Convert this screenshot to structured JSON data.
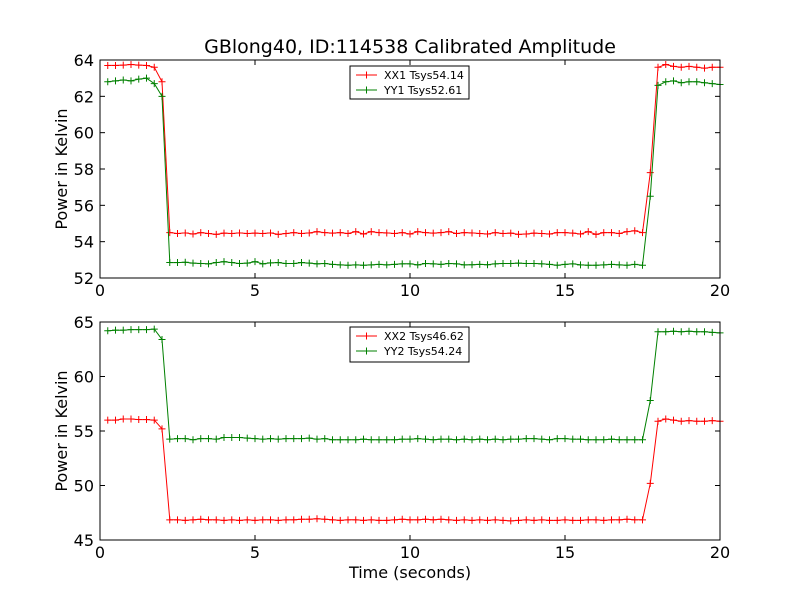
{
  "figure": {
    "title": "GBlong40, ID:114538 Calibrated Amplitude",
    "xlabel": "Time (seconds)"
  },
  "chart_data": [
    {
      "type": "line",
      "ylabel": "Power in Kelvin",
      "xlim": [
        0,
        20
      ],
      "ylim": [
        52,
        64
      ],
      "xticks": [
        0,
        5,
        10,
        15,
        20
      ],
      "yticks": [
        52,
        54,
        56,
        58,
        60,
        62,
        64
      ],
      "grid": false,
      "legend_position": "top-center",
      "series": [
        {
          "name": "XX1 Tsys54.14",
          "color": "#ff0000",
          "x": [
            0.25,
            0.5,
            0.75,
            1.0,
            1.25,
            1.5,
            1.75,
            2.0,
            2.25,
            2.5,
            2.75,
            3.0,
            3.25,
            3.5,
            3.75,
            4.0,
            4.25,
            4.5,
            4.75,
            5.0,
            5.25,
            5.5,
            5.75,
            6.0,
            6.25,
            6.5,
            6.75,
            7.0,
            7.25,
            7.5,
            7.75,
            8.0,
            8.25,
            8.5,
            8.75,
            9.0,
            9.25,
            9.5,
            9.75,
            10.0,
            10.25,
            10.5,
            10.75,
            11.0,
            11.25,
            11.5,
            11.75,
            12.0,
            12.25,
            12.5,
            12.75,
            13.0,
            13.25,
            13.5,
            13.75,
            14.0,
            14.25,
            14.5,
            14.75,
            15.0,
            15.25,
            15.5,
            15.75,
            16.0,
            16.25,
            16.5,
            16.75,
            17.0,
            17.25,
            17.5,
            17.75,
            18.0,
            18.25,
            18.5,
            18.75,
            19.0,
            19.25,
            19.5,
            19.75,
            20.0
          ],
          "y": [
            63.7,
            63.7,
            63.72,
            63.75,
            63.72,
            63.7,
            63.6,
            62.8,
            54.5,
            54.45,
            54.48,
            54.42,
            54.5,
            54.45,
            54.4,
            54.47,
            54.45,
            54.48,
            54.45,
            54.47,
            54.45,
            54.48,
            54.4,
            54.45,
            54.5,
            54.45,
            54.48,
            54.55,
            54.5,
            54.47,
            54.5,
            54.45,
            54.55,
            54.42,
            54.55,
            54.5,
            54.48,
            54.45,
            54.5,
            54.42,
            54.55,
            54.5,
            54.47,
            54.5,
            54.55,
            54.45,
            54.5,
            54.48,
            54.45,
            54.42,
            54.5,
            54.45,
            54.47,
            54.4,
            54.42,
            54.47,
            54.45,
            54.42,
            54.5,
            54.5,
            54.47,
            54.42,
            54.55,
            54.4,
            54.5,
            54.5,
            54.45,
            54.55,
            54.6,
            54.5,
            57.8,
            63.6,
            63.75,
            63.65,
            63.6,
            63.65,
            63.6,
            63.55,
            63.6,
            63.6
          ]
        },
        {
          "name": "YY1 Tsys52.61",
          "color": "#008000",
          "x": [
            0.25,
            0.5,
            0.75,
            1.0,
            1.25,
            1.5,
            1.75,
            2.0,
            2.25,
            2.5,
            2.75,
            3.0,
            3.25,
            3.5,
            3.75,
            4.0,
            4.25,
            4.5,
            4.75,
            5.0,
            5.25,
            5.5,
            5.75,
            6.0,
            6.25,
            6.5,
            6.75,
            7.0,
            7.25,
            7.5,
            7.75,
            8.0,
            8.25,
            8.5,
            8.75,
            9.0,
            9.25,
            9.5,
            9.75,
            10.0,
            10.25,
            10.5,
            10.75,
            11.0,
            11.25,
            11.5,
            11.75,
            12.0,
            12.25,
            12.5,
            12.75,
            13.0,
            13.25,
            13.5,
            13.75,
            14.0,
            14.25,
            14.5,
            14.75,
            15.0,
            15.25,
            15.5,
            15.75,
            16.0,
            16.25,
            16.5,
            16.75,
            17.0,
            17.25,
            17.5,
            17.75,
            18.0,
            18.25,
            18.5,
            18.75,
            19.0,
            19.25,
            19.5,
            19.75,
            20.0
          ],
          "y": [
            62.8,
            62.85,
            62.9,
            62.85,
            62.95,
            63.0,
            62.7,
            62.0,
            52.85,
            52.85,
            52.87,
            52.82,
            52.8,
            52.78,
            52.85,
            52.9,
            52.85,
            52.8,
            52.82,
            52.9,
            52.78,
            52.83,
            52.85,
            52.8,
            52.8,
            52.85,
            52.82,
            52.78,
            52.8,
            52.75,
            52.72,
            52.7,
            52.72,
            52.7,
            52.72,
            52.75,
            52.72,
            52.75,
            52.78,
            52.78,
            52.72,
            52.8,
            52.78,
            52.75,
            52.8,
            52.78,
            52.72,
            52.73,
            52.75,
            52.73,
            52.78,
            52.8,
            52.8,
            52.82,
            52.8,
            52.8,
            52.78,
            52.75,
            52.7,
            52.75,
            52.78,
            52.72,
            52.7,
            52.7,
            52.72,
            52.75,
            52.72,
            52.7,
            52.75,
            52.7,
            56.5,
            62.6,
            62.8,
            62.85,
            62.75,
            62.8,
            62.8,
            62.75,
            62.7,
            62.65
          ]
        }
      ]
    },
    {
      "type": "line",
      "ylabel": "Power in Kelvin",
      "xlim": [
        0,
        20
      ],
      "ylim": [
        45,
        65
      ],
      "xticks": [
        0,
        5,
        10,
        15,
        20
      ],
      "yticks": [
        45,
        50,
        55,
        60,
        65
      ],
      "grid": false,
      "legend_position": "top-center",
      "series": [
        {
          "name": "XX2 Tsys46.62",
          "color": "#ff0000",
          "x": [
            0.25,
            0.5,
            0.75,
            1.0,
            1.25,
            1.5,
            1.75,
            2.0,
            2.25,
            2.5,
            2.75,
            3.0,
            3.25,
            3.5,
            3.75,
            4.0,
            4.25,
            4.5,
            4.75,
            5.0,
            5.25,
            5.5,
            5.75,
            6.0,
            6.25,
            6.5,
            6.75,
            7.0,
            7.25,
            7.5,
            7.75,
            8.0,
            8.25,
            8.5,
            8.75,
            9.0,
            9.25,
            9.5,
            9.75,
            10.0,
            10.25,
            10.5,
            10.75,
            11.0,
            11.25,
            11.5,
            11.75,
            12.0,
            12.25,
            12.5,
            12.75,
            13.0,
            13.25,
            13.5,
            13.75,
            14.0,
            14.25,
            14.5,
            14.75,
            15.0,
            15.25,
            15.5,
            15.75,
            16.0,
            16.25,
            16.5,
            16.75,
            17.0,
            17.25,
            17.5,
            17.75,
            18.0,
            18.25,
            18.5,
            18.75,
            19.0,
            19.25,
            19.5,
            19.75,
            20.0
          ],
          "y": [
            56.0,
            56.0,
            56.1,
            56.1,
            56.05,
            56.05,
            56.0,
            55.2,
            46.85,
            46.85,
            46.8,
            46.85,
            46.9,
            46.85,
            46.85,
            46.8,
            46.85,
            46.8,
            46.85,
            46.8,
            46.85,
            46.85,
            46.8,
            46.85,
            46.85,
            46.9,
            46.9,
            46.95,
            46.9,
            46.85,
            46.8,
            46.85,
            46.85,
            46.8,
            46.85,
            46.8,
            46.8,
            46.85,
            46.9,
            46.85,
            46.85,
            46.9,
            46.85,
            46.9,
            46.85,
            46.8,
            46.85,
            46.8,
            46.85,
            46.8,
            46.85,
            46.8,
            46.75,
            46.8,
            46.85,
            46.8,
            46.85,
            46.8,
            46.8,
            46.85,
            46.8,
            46.8,
            46.85,
            46.85,
            46.8,
            46.85,
            46.85,
            46.9,
            46.85,
            46.85,
            50.2,
            55.9,
            56.1,
            56.0,
            55.9,
            55.95,
            55.9,
            55.9,
            55.95,
            55.9
          ]
        },
        {
          "name": "YY2 Tsys54.24",
          "color": "#008000",
          "x": [
            0.25,
            0.5,
            0.75,
            1.0,
            1.25,
            1.5,
            1.75,
            2.0,
            2.25,
            2.5,
            2.75,
            3.0,
            3.25,
            3.5,
            3.75,
            4.0,
            4.25,
            4.5,
            4.75,
            5.0,
            5.25,
            5.5,
            5.75,
            6.0,
            6.25,
            6.5,
            6.75,
            7.0,
            7.25,
            7.5,
            7.75,
            8.0,
            8.25,
            8.5,
            8.75,
            9.0,
            9.25,
            9.5,
            9.75,
            10.0,
            10.25,
            10.5,
            10.75,
            11.0,
            11.25,
            11.5,
            11.75,
            12.0,
            12.25,
            12.5,
            12.75,
            13.0,
            13.25,
            13.5,
            13.75,
            14.0,
            14.25,
            14.5,
            14.75,
            15.0,
            15.25,
            15.5,
            15.75,
            16.0,
            16.25,
            16.5,
            16.75,
            17.0,
            17.25,
            17.5,
            17.75,
            18.0,
            18.25,
            18.5,
            18.75,
            19.0,
            19.25,
            19.5,
            19.75,
            20.0
          ],
          "y": [
            64.2,
            64.25,
            64.25,
            64.3,
            64.3,
            64.3,
            64.35,
            63.4,
            54.25,
            54.3,
            54.3,
            54.2,
            54.3,
            54.3,
            54.25,
            54.4,
            54.4,
            54.4,
            54.35,
            54.3,
            54.25,
            54.3,
            54.25,
            54.3,
            54.3,
            54.3,
            54.35,
            54.25,
            54.3,
            54.2,
            54.2,
            54.2,
            54.2,
            54.25,
            54.2,
            54.2,
            54.2,
            54.2,
            54.25,
            54.25,
            54.3,
            54.25,
            54.2,
            54.25,
            54.25,
            54.2,
            54.25,
            54.2,
            54.25,
            54.2,
            54.25,
            54.2,
            54.25,
            54.25,
            54.3,
            54.3,
            54.25,
            54.2,
            54.3,
            54.3,
            54.25,
            54.25,
            54.2,
            54.2,
            54.2,
            54.25,
            54.2,
            54.2,
            54.2,
            54.2,
            57.8,
            64.1,
            64.1,
            64.15,
            64.1,
            64.15,
            64.1,
            64.1,
            64.05,
            64.0
          ]
        }
      ]
    }
  ]
}
